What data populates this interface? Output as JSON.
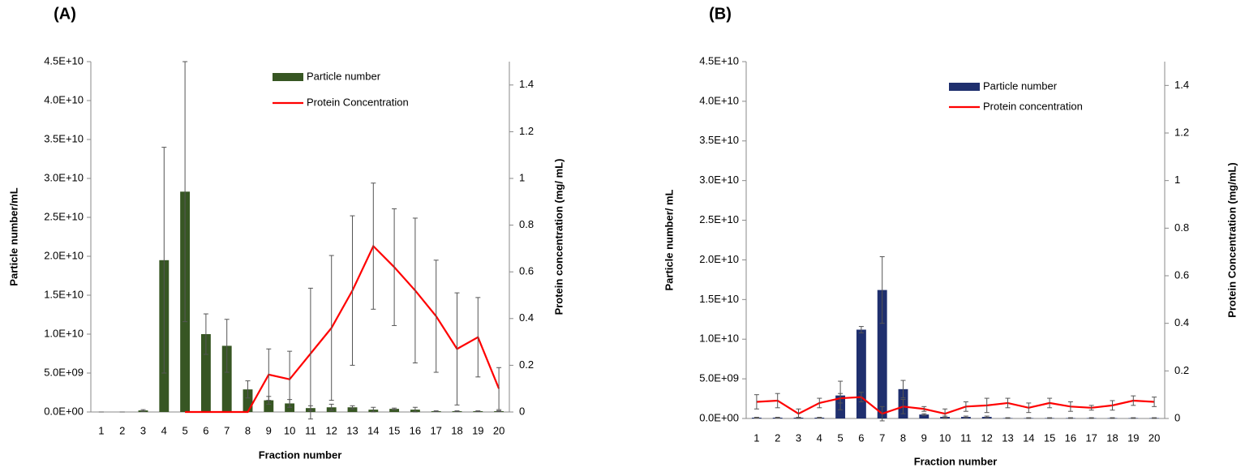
{
  "chart_data": [
    {
      "type": "bar",
      "title": "(A)",
      "x_label": "Fraction number",
      "y_label": "Particle number/mL",
      "y2_label": "Protein concentration (mg/ mL)",
      "categories": [
        "1",
        "2",
        "3",
        "4",
        "5",
        "6",
        "7",
        "8",
        "9",
        "10",
        "11",
        "12",
        "13",
        "14",
        "15",
        "16",
        "17",
        "18",
        "19",
        "20"
      ],
      "ylim": [
        0,
        45000000000
      ],
      "yticks": [
        {
          "value": 0,
          "label": "0.0E+00"
        },
        {
          "value": 5000000000,
          "label": "5.0E+09"
        },
        {
          "value": 10000000000,
          "label": "1.0E+10"
        },
        {
          "value": 15000000000,
          "label": "1.5E+10"
        },
        {
          "value": 20000000000,
          "label": "2.0E+10"
        },
        {
          "value": 25000000000,
          "label": "2.5E+10"
        },
        {
          "value": 30000000000,
          "label": "3.0E+10"
        },
        {
          "value": 35000000000,
          "label": "3.5E+10"
        },
        {
          "value": 40000000000,
          "label": "4.0E+10"
        },
        {
          "value": 45000000000,
          "label": "4.5E+10"
        }
      ],
      "y2lim": [
        0,
        1.5
      ],
      "y2ticks": [
        0,
        0.2,
        0.4,
        0.6,
        0.8,
        1,
        1.2,
        1.4
      ],
      "series": [
        {
          "name": "Particle number",
          "type": "bar",
          "color": "#375623",
          "values": [
            0,
            0,
            200000000,
            19500000000,
            28300000000,
            10000000000,
            8500000000,
            2900000000,
            1500000000,
            1100000000,
            500000000,
            600000000,
            600000000,
            300000000,
            400000000,
            300000000,
            100000000,
            100000000,
            100000000,
            100000000
          ],
          "errors": [
            0,
            0,
            100000000,
            14500000000,
            16700000000,
            2600000000,
            3400000000,
            1100000000,
            500000000,
            500000000,
            300000000,
            400000000,
            200000000,
            300000000,
            100000000,
            300000000,
            50000000,
            50000000,
            50000000,
            50000000
          ]
        },
        {
          "name": "Protein Concentration",
          "type": "line",
          "axis": "y2",
          "color": "#ff0000",
          "values": [
            null,
            null,
            null,
            null,
            0,
            0,
            0,
            0,
            0.16,
            0.14,
            0.25,
            0.36,
            0.52,
            0.71,
            0.62,
            0.52,
            0.41,
            0.27,
            0.32,
            0.1
          ],
          "errors": [
            null,
            null,
            null,
            null,
            0,
            0,
            0,
            0,
            0.11,
            0.12,
            0.28,
            0.31,
            0.32,
            0.27,
            0.25,
            0.31,
            0.24,
            0.24,
            0.17,
            0.09
          ]
        }
      ]
    },
    {
      "type": "bar",
      "title": "(B)",
      "x_label": "Fraction number",
      "y_label": "Particle number/ mL",
      "y2_label": "Protein Concentration (mg/mL)",
      "categories": [
        "1",
        "2",
        "3",
        "4",
        "5",
        "6",
        "7",
        "8",
        "9",
        "10",
        "11",
        "12",
        "13",
        "14",
        "15",
        "16",
        "17",
        "18",
        "19",
        "20"
      ],
      "ylim": [
        0,
        45000000000
      ],
      "yticks": [
        {
          "value": 0,
          "label": "0.0E+00"
        },
        {
          "value": 5000000000,
          "label": "5.0E+09"
        },
        {
          "value": 10000000000,
          "label": "1.0E+10"
        },
        {
          "value": 15000000000,
          "label": "1.5E+10"
        },
        {
          "value": 20000000000,
          "label": "2.0E+10"
        },
        {
          "value": 25000000000,
          "label": "2.5E+10"
        },
        {
          "value": 30000000000,
          "label": "3.0E+10"
        },
        {
          "value": 35000000000,
          "label": "3.5E+10"
        },
        {
          "value": 40000000000,
          "label": "4.0E+10"
        },
        {
          "value": 45000000000,
          "label": "4.5E+10"
        }
      ],
      "y2lim": [
        0,
        1.5
      ],
      "y2ticks": [
        0,
        0.2,
        0.4,
        0.6,
        0.8,
        1,
        1.2,
        1.4
      ],
      "series": [
        {
          "name": "Particle number",
          "type": "bar",
          "color": "#1f2f6e",
          "values": [
            100000000,
            100000000,
            100000000,
            100000000,
            2900000000,
            11200000000,
            16200000000,
            3700000000,
            500000000,
            200000000,
            200000000,
            200000000,
            50000000,
            50000000,
            50000000,
            50000000,
            50000000,
            50000000,
            50000000,
            50000000
          ],
          "errors": [
            50000000,
            50000000,
            50000000,
            50000000,
            1800000000,
            400000000,
            4200000000,
            1100000000,
            100000000,
            100000000,
            100000000,
            100000000,
            50000000,
            50000000,
            50000000,
            50000000,
            50000000,
            50000000,
            50000000,
            50000000
          ]
        },
        {
          "name": "Protein concentration",
          "type": "line",
          "axis": "y2",
          "color": "#ff0000",
          "values": [
            0.07,
            0.075,
            0.02,
            0.065,
            0.085,
            0.09,
            0.02,
            0.05,
            0.04,
            0.02,
            0.05,
            0.055,
            0.065,
            0.045,
            0.065,
            0.05,
            0.045,
            0.055,
            0.075,
            0.07
          ],
          "errors": [
            0.03,
            0.03,
            0.02,
            0.02,
            0.02,
            0.02,
            0.03,
            0.03,
            0.01,
            0.02,
            0.02,
            0.03,
            0.02,
            0.02,
            0.02,
            0.02,
            0.01,
            0.02,
            0.02,
            0.02
          ]
        }
      ]
    }
  ]
}
